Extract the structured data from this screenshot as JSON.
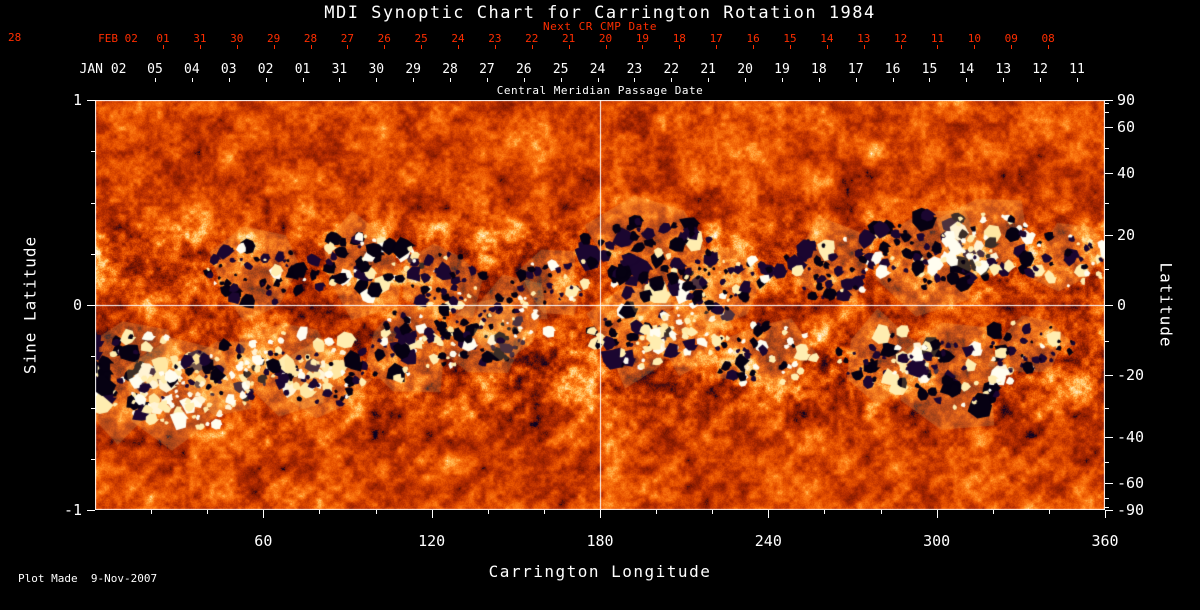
{
  "chart_data": {
    "type": "heatmap",
    "title": "MDI Synoptic Chart for Carrington Rotation 1984",
    "xlabel": "Carrington Longitude",
    "ylabel_left": "Sine Latitude",
    "ylabel_right": "Latitude",
    "xlim": [
      0,
      360
    ],
    "ylim_sine": [
      -1,
      1
    ],
    "x_major_ticks": [
      60,
      120,
      180,
      240,
      300,
      360
    ],
    "x_minor_step": 20,
    "left_ticks": [
      {
        "value": 1,
        "label": "1"
      },
      {
        "value": 0,
        "label": "0"
      },
      {
        "value": -1,
        "label": "-1"
      }
    ],
    "left_minor": [
      0.75,
      0.5,
      0.25,
      -0.25,
      -0.5,
      -0.75
    ],
    "right_ticks_deg": [
      90,
      60,
      40,
      20,
      0,
      -20,
      -40,
      -60,
      -90
    ],
    "right_minor_deg": [
      80,
      70,
      50,
      30,
      10,
      -10,
      -30,
      -50,
      -70,
      -80
    ],
    "gridlines": {
      "vertical_lon": 180,
      "horizontal_sine": 0,
      "color": "#ffffff"
    },
    "top_axis": {
      "corner_label": "28",
      "next_cr_label": "Next CR CMP Date",
      "red_month_label": "FEB 02",
      "red_days": [
        "01",
        "31",
        "30",
        "29",
        "28",
        "27",
        "26",
        "25",
        "24",
        "23",
        "22",
        "21",
        "20",
        "19",
        "18",
        "17",
        "16",
        "15",
        "14",
        "13",
        "12",
        "11",
        "10",
        "09",
        "08"
      ],
      "white_month_label": "JAN 02",
      "white_days": [
        "05",
        "04",
        "03",
        "02",
        "01",
        "31",
        "30",
        "29",
        "28",
        "27",
        "26",
        "25",
        "24",
        "23",
        "22",
        "21",
        "20",
        "19",
        "18",
        "17",
        "16",
        "15",
        "14",
        "13",
        "12",
        "11"
      ],
      "axis_caption": "Central Meridian Passage Date",
      "red_color": "#ff2e00"
    },
    "colormap": {
      "stops": [
        [
          0.0,
          "#7c1600"
        ],
        [
          0.3,
          "#b82e00"
        ],
        [
          0.55,
          "#e85200"
        ],
        [
          0.78,
          "#ff7d14"
        ],
        [
          1.0,
          "#ffc25e"
        ]
      ],
      "white_high": "#fffdf2",
      "dark_low": "#0b0222",
      "plage": "#ffd070"
    },
    "active_regions": [
      {
        "lon": 14,
        "slat": -0.33,
        "size": 3,
        "pol": "mixed"
      },
      {
        "lon": 32,
        "slat": -0.44,
        "size": 2.5,
        "pol": "white"
      },
      {
        "lon": 46,
        "slat": -0.34,
        "size": 2,
        "pol": "mixed"
      },
      {
        "lon": 57,
        "slat": 0.15,
        "size": 2,
        "pol": "dark"
      },
      {
        "lon": 70,
        "slat": -0.28,
        "size": 2.2,
        "pol": "white"
      },
      {
        "lon": 82,
        "slat": -0.36,
        "size": 1.6,
        "pol": "dark"
      },
      {
        "lon": 96,
        "slat": 0.2,
        "size": 2.4,
        "pol": "mixed"
      },
      {
        "lon": 110,
        "slat": -0.2,
        "size": 2.4,
        "pol": "mixed"
      },
      {
        "lon": 124,
        "slat": 0.12,
        "size": 1.6,
        "pol": "dark"
      },
      {
        "lon": 136,
        "slat": -0.14,
        "size": 2,
        "pol": "dark"
      },
      {
        "lon": 149,
        "slat": -0.07,
        "size": 1.4,
        "pol": "mixed"
      },
      {
        "lon": 162,
        "slat": 0.1,
        "size": 1.2,
        "pol": "dark"
      },
      {
        "lon": 193,
        "slat": -0.16,
        "size": 2,
        "pol": "mixed"
      },
      {
        "lon": 197,
        "slat": 0.24,
        "size": 3,
        "pol": "dark"
      },
      {
        "lon": 212,
        "slat": -0.12,
        "size": 1.6,
        "pol": "white"
      },
      {
        "lon": 223,
        "slat": 0.12,
        "size": 2,
        "pol": "dark"
      },
      {
        "lon": 238,
        "slat": -0.24,
        "size": 2,
        "pol": "mixed"
      },
      {
        "lon": 262,
        "slat": 0.18,
        "size": 2,
        "pol": "dark"
      },
      {
        "lon": 283,
        "slat": -0.26,
        "size": 2,
        "pol": "mixed"
      },
      {
        "lon": 298,
        "slat": 0.26,
        "size": 3,
        "pol": "dark"
      },
      {
        "lon": 306,
        "slat": -0.34,
        "size": 2.5,
        "pol": "mixed"
      },
      {
        "lon": 318,
        "slat": 0.3,
        "size": 2,
        "pol": "white"
      },
      {
        "lon": 333,
        "slat": -0.2,
        "size": 1.5,
        "pol": "dark"
      },
      {
        "lon": 346,
        "slat": 0.22,
        "size": 1.6,
        "pol": "mixed"
      }
    ],
    "footer": "Plot Made  9-Nov-2007"
  }
}
